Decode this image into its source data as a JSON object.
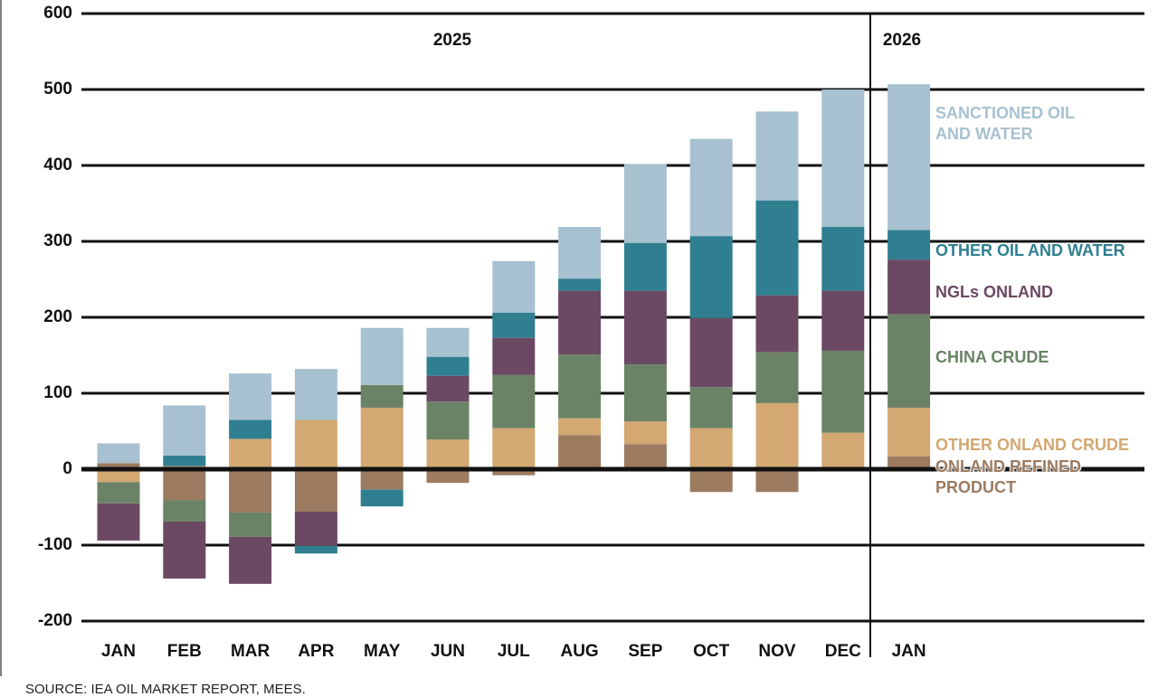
{
  "chart_data": {
    "type": "bar",
    "stacked": true,
    "categories": [
      "JAN",
      "FEB",
      "MAR",
      "APR",
      "MAY",
      "JUN",
      "JUL",
      "AUG",
      "SEP",
      "OCT",
      "NOV",
      "DEC",
      "JAN"
    ],
    "year_labels": [
      "2025",
      "2026"
    ],
    "series": [
      {
        "name": "ONLAND REFINED PRODUCT",
        "color": "#9c7b61",
        "values": [
          8,
          -41,
          -57,
          -56,
          -27,
          -18,
          -8,
          45,
          33,
          -30,
          -30,
          0,
          17
        ]
      },
      {
        "name": "OTHER ONLAND CRUDE",
        "color": "#d3a872",
        "values": [
          -17,
          4,
          40,
          65,
          81,
          39,
          54,
          22,
          30,
          54,
          87,
          48,
          64
        ]
      },
      {
        "name": "CHINA CRUDE",
        "color": "#6a8366",
        "values": [
          -28,
          -28,
          -32,
          0,
          30,
          50,
          70,
          84,
          75,
          54,
          67,
          108,
          123
        ]
      },
      {
        "name": "NGLs ONLAND",
        "color": "#6b4963",
        "values": [
          -49,
          -75,
          -62,
          -45,
          0,
          34,
          49,
          84,
          97,
          91,
          75,
          79,
          72
        ]
      },
      {
        "name": "OTHER OIL AND WATER",
        "color": "#2f7f91",
        "values": [
          0,
          14,
          25,
          -10,
          -22,
          25,
          33,
          16,
          63,
          108,
          125,
          84,
          39
        ]
      },
      {
        "name": "SANCTIONED OIL AND WATER",
        "color": "#a7c1d0",
        "values": [
          26,
          66,
          61,
          67,
          75,
          38,
          68,
          68,
          104,
          128,
          117,
          181,
          192
        ]
      }
    ],
    "ylim": [
      -200,
      600
    ],
    "yticks": [
      -200,
      -100,
      0,
      100,
      200,
      300,
      400,
      500,
      600
    ],
    "grid": true,
    "source": "SOURCE: IEA OIL MARKET REPORT, MEES."
  }
}
